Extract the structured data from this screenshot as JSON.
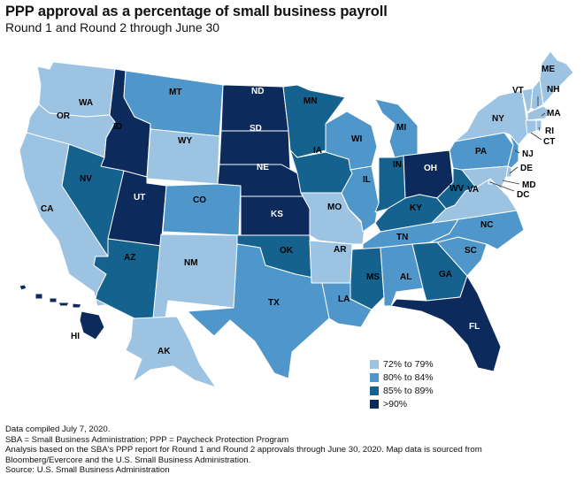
{
  "title": "PPP approval as a percentage of small business payroll",
  "subtitle": "Round 1 and Round 2 through June 30",
  "colors": {
    "c1": "#9dc3e3",
    "c2": "#4f97cb",
    "c3": "#15628f",
    "c4": "#0c2b5c",
    "border": "#ffffff"
  },
  "legend": [
    {
      "key": "c1",
      "label": "72% to 79%"
    },
    {
      "key": "c2",
      "label": "80% to 84%"
    },
    {
      "key": "c3",
      "label": "85% to 89%"
    },
    {
      "key": "c4",
      "label": ">90%"
    }
  ],
  "states": [
    {
      "abbr": "WA",
      "bin": "c1"
    },
    {
      "abbr": "OR",
      "bin": "c1"
    },
    {
      "abbr": "CA",
      "bin": "c1"
    },
    {
      "abbr": "ID",
      "bin": "c4"
    },
    {
      "abbr": "NV",
      "bin": "c3"
    },
    {
      "abbr": "UT",
      "bin": "c4"
    },
    {
      "abbr": "AZ",
      "bin": "c3"
    },
    {
      "abbr": "MT",
      "bin": "c2"
    },
    {
      "abbr": "WY",
      "bin": "c1"
    },
    {
      "abbr": "CO",
      "bin": "c2"
    },
    {
      "abbr": "NM",
      "bin": "c1"
    },
    {
      "abbr": "ND",
      "bin": "c4"
    },
    {
      "abbr": "SD",
      "bin": "c4"
    },
    {
      "abbr": "NE",
      "bin": "c4"
    },
    {
      "abbr": "KS",
      "bin": "c4"
    },
    {
      "abbr": "OK",
      "bin": "c3"
    },
    {
      "abbr": "TX",
      "bin": "c2"
    },
    {
      "abbr": "MN",
      "bin": "c3"
    },
    {
      "abbr": "IA",
      "bin": "c3"
    },
    {
      "abbr": "MO",
      "bin": "c1"
    },
    {
      "abbr": "AR",
      "bin": "c1"
    },
    {
      "abbr": "LA",
      "bin": "c2"
    },
    {
      "abbr": "WI",
      "bin": "c2"
    },
    {
      "abbr": "IL",
      "bin": "c2"
    },
    {
      "abbr": "MI",
      "bin": "c2"
    },
    {
      "abbr": "IN",
      "bin": "c3"
    },
    {
      "abbr": "OH",
      "bin": "c4"
    },
    {
      "abbr": "KY",
      "bin": "c3"
    },
    {
      "abbr": "TN",
      "bin": "c2"
    },
    {
      "abbr": "MS",
      "bin": "c3"
    },
    {
      "abbr": "AL",
      "bin": "c2"
    },
    {
      "abbr": "GA",
      "bin": "c3"
    },
    {
      "abbr": "FL",
      "bin": "c4"
    },
    {
      "abbr": "SC",
      "bin": "c2"
    },
    {
      "abbr": "NC",
      "bin": "c2"
    },
    {
      "abbr": "VA",
      "bin": "c1"
    },
    {
      "abbr": "WV",
      "bin": "c3"
    },
    {
      "abbr": "PA",
      "bin": "c2"
    },
    {
      "abbr": "NY",
      "bin": "c1"
    },
    {
      "abbr": "VT",
      "bin": "c1"
    },
    {
      "abbr": "NH",
      "bin": "c1"
    },
    {
      "abbr": "ME",
      "bin": "c1"
    },
    {
      "abbr": "MA",
      "bin": "c1"
    },
    {
      "abbr": "RI",
      "bin": "c1"
    },
    {
      "abbr": "CT",
      "bin": "c1"
    },
    {
      "abbr": "NJ",
      "bin": "c2"
    },
    {
      "abbr": "DE",
      "bin": "c1"
    },
    {
      "abbr": "MD",
      "bin": "c1"
    },
    {
      "abbr": "DC",
      "bin": "c1"
    },
    {
      "abbr": "AK",
      "bin": "c1"
    },
    {
      "abbr": "HI",
      "bin": "c4"
    }
  ],
  "notes": [
    "Data compiled July 7, 2020.",
    "SBA = Small Business Administration; PPP = Paycheck Protection Program",
    "Analysis based on the SBA's PPP report for Round 1 and Round 2 approvals through June 30, 2020. Map data is sourced from",
    "Bloomberg/Evercore and the U.S. Small Business Administration.",
    "Source: U.S. Small Business Administration"
  ]
}
